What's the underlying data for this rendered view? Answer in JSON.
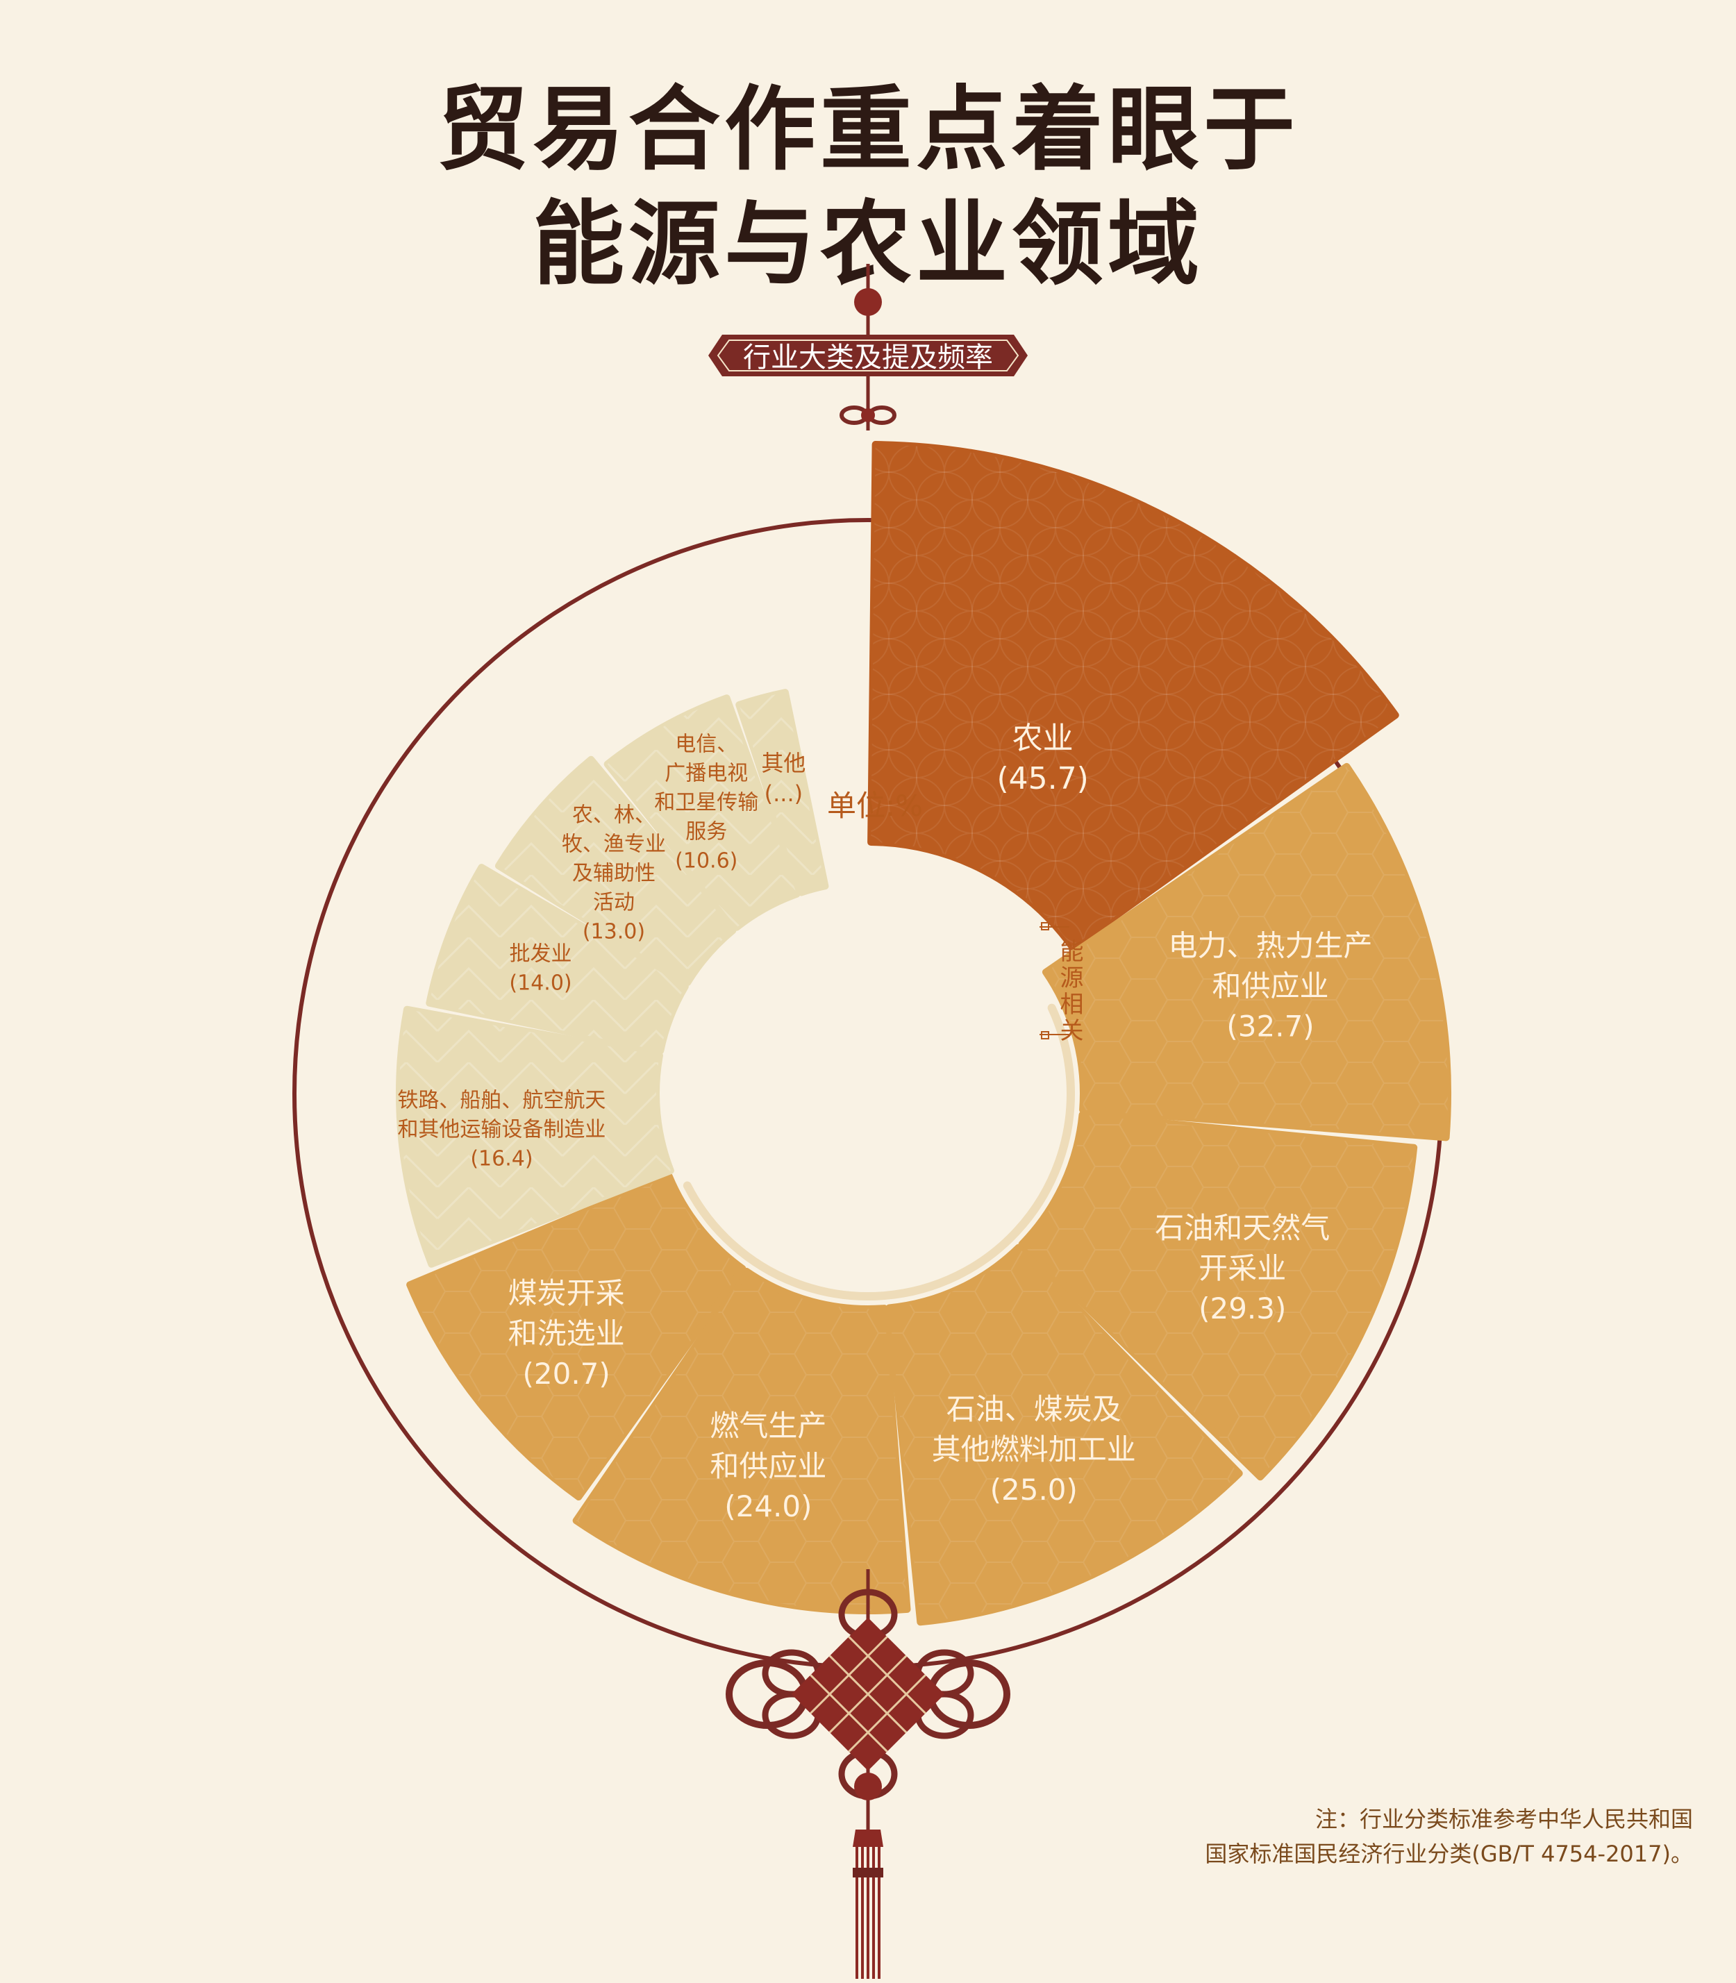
{
  "title_line1": "贸易合作重点着眼于",
  "title_line2": "能源与农业领域",
  "badge": "行业大类及提及频率",
  "side_label": "能源相关",
  "unit": "单位:%",
  "note_line1": "注：行业分类标准参考中华人民共和国",
  "note_line2": "国家标准国民经济行业分类(GB/T 4754-2017)。",
  "colors": {
    "agriculture": "#bb5c20",
    "energy": "#dba250",
    "other": "#e8dcb5",
    "ring": "#7b2a25",
    "label_light": "#fff2e0",
    "label_dark": "#b65a1c"
  },
  "chart_data": {
    "type": "pie",
    "style": "nightingale-rose",
    "unit": "%",
    "slices": [
      {
        "lines": [
          "农业",
          "(45.7)"
        ],
        "value": 45.7,
        "group": "agriculture"
      },
      {
        "lines": [
          "电力、热力生产",
          "和供应业",
          "(32.7)"
        ],
        "value": 32.7,
        "group": "energy"
      },
      {
        "lines": [
          "石油和天然气",
          "开采业",
          "(29.3)"
        ],
        "value": 29.3,
        "group": "energy"
      },
      {
        "lines": [
          "石油、煤炭及",
          "其他燃料加工业",
          "(25.0)"
        ],
        "value": 25.0,
        "group": "energy"
      },
      {
        "lines": [
          "燃气生产",
          "和供应业",
          "(24.0)"
        ],
        "value": 24.0,
        "group": "energy"
      },
      {
        "lines": [
          "煤炭开采",
          "和洗选业",
          "(20.7)"
        ],
        "value": 20.7,
        "group": "energy"
      },
      {
        "lines": [
          "铁路、船舶、航空航天",
          "和其他运输设备制造业",
          "(16.4)"
        ],
        "value": 16.4,
        "group": "other"
      },
      {
        "lines": [
          "批发业",
          "(14.0)"
        ],
        "value": 14.0,
        "group": "other"
      },
      {
        "lines": [
          "农、林、",
          "牧、渔专业",
          "及辅助性",
          "活动",
          "(13.0)"
        ],
        "value": 13.0,
        "group": "other"
      },
      {
        "lines": [
          "电信、",
          "广播电视",
          "和卫星传输",
          "服务",
          "(10.6)"
        ],
        "value": 10.6,
        "group": "other"
      },
      {
        "lines": [
          "其他",
          "(...)"
        ],
        "value": null,
        "group": "other"
      }
    ]
  }
}
